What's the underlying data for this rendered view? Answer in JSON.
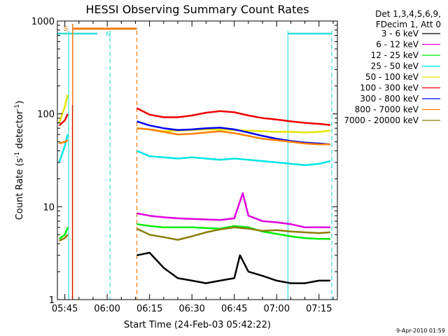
{
  "chart_data": {
    "type": "line",
    "title": "HESSI Observing Summary Count Rates",
    "xlabel": "Start Time (24-Feb-03 05:42:22)",
    "ylabel": "Count Rate (s⁻¹ detector⁻¹)",
    "ylabel_main": "Count Rate (s",
    "ylabel_sup1": "-1",
    "ylabel_mid": " detector",
    "ylabel_sup2": "-1",
    "ylabel_end": ")",
    "y_scale": "log",
    "ylim": [
      1,
      1000
    ],
    "xlim": [
      "05:42:22",
      "07:21:30"
    ],
    "x_ticks": [
      "05:45",
      "06:00",
      "06:15",
      "06:30",
      "06:45",
      "07:00",
      "07:15"
    ],
    "y_ticks": [
      "1",
      "10",
      "100",
      "1000"
    ],
    "grid": false,
    "legend_position": "top-right",
    "legend_header": [
      "Det 1,3,4,5,6,9,",
      "FDecim 1, Att 0"
    ],
    "timestamp": "9-Apr-2010 01:59",
    "flag_labels": {
      "S": "S",
      "N": "N"
    },
    "data_gaps": [
      [
        "05:48:00",
        "06:10:30"
      ]
    ],
    "series": [
      {
        "name": "3 - 6 keV",
        "color": "#000000",
        "x": [
          "06:10:30",
          "06:15",
          "06:20",
          "06:25",
          "06:30",
          "06:35",
          "06:40",
          "06:45",
          "06:47",
          "06:50",
          "06:55",
          "07:00",
          "07:05",
          "07:10",
          "07:15",
          "07:19"
        ],
        "y": [
          3.0,
          3.2,
          2.2,
          1.7,
          1.6,
          1.5,
          1.6,
          1.7,
          3.0,
          2.0,
          1.8,
          1.6,
          1.5,
          1.5,
          1.6,
          1.6
        ]
      },
      {
        "name": "6 - 12 keV",
        "color": "#e000e0",
        "x": [
          "06:10:30",
          "06:15",
          "06:20",
          "06:25",
          "06:30",
          "06:35",
          "06:40",
          "06:45",
          "06:48",
          "06:50",
          "06:55",
          "07:00",
          "07:05",
          "07:10",
          "07:15",
          "07:19"
        ],
        "y": [
          8.5,
          8.0,
          7.7,
          7.5,
          7.4,
          7.3,
          7.2,
          7.5,
          14,
          8.0,
          7.0,
          6.8,
          6.5,
          6.0,
          6.0,
          6.0
        ]
      },
      {
        "name": "12 - 25 keV",
        "color": "#00ee00",
        "x": [
          "05:43",
          "05:45",
          "05:46",
          "06:10:30",
          "06:15",
          "06:20",
          "06:25",
          "06:30",
          "06:35",
          "06:40",
          "06:45",
          "06:50",
          "06:55",
          "07:00",
          "07:05",
          "07:10",
          "07:15",
          "07:19"
        ],
        "y": [
          4.5,
          5.0,
          6.0,
          6.5,
          6.2,
          6.0,
          6.0,
          6.0,
          5.9,
          5.8,
          6.2,
          6.0,
          5.4,
          5.1,
          4.8,
          4.6,
          4.5,
          4.5
        ]
      },
      {
        "name": "25 - 50 keV",
        "color": "#00e5e5",
        "x": [
          "05:43",
          "05:45",
          "05:46",
          "06:10:30",
          "06:15",
          "06:20",
          "06:25",
          "06:30",
          "06:35",
          "06:40",
          "06:45",
          "06:50",
          "06:55",
          "07:00",
          "07:05",
          "07:10",
          "07:15",
          "07:19"
        ],
        "y": [
          30,
          45,
          60,
          40,
          35,
          34,
          33,
          34,
          33,
          32,
          33,
          32,
          31,
          30,
          29,
          28,
          29,
          31
        ]
      },
      {
        "name": "50 - 100 keV",
        "color": "#e5e500",
        "x": [
          "05:43",
          "05:45",
          "05:46",
          "06:10:30",
          "06:15",
          "06:20",
          "06:25",
          "06:30",
          "06:35",
          "06:40",
          "06:45",
          "06:50",
          "06:55",
          "07:00",
          "07:05",
          "07:10",
          "07:15",
          "07:19"
        ],
        "y": [
          80,
          120,
          160,
          70,
          68,
          65,
          66,
          67,
          68,
          68,
          67,
          66,
          65,
          64,
          64,
          63,
          64,
          66
        ]
      },
      {
        "name": "100 - 300 keV",
        "color": "#ee0000",
        "x": [
          "05:43",
          "05:45",
          "05:46",
          "06:10:30",
          "06:15",
          "06:20",
          "06:25",
          "06:30",
          "06:35",
          "06:40",
          "06:45",
          "06:50",
          "06:55",
          "07:00",
          "07:05",
          "07:10",
          "07:15",
          "07:19"
        ],
        "y": [
          75,
          85,
          100,
          115,
          98,
          92,
          92,
          96,
          103,
          107,
          104,
          96,
          90,
          87,
          83,
          80,
          78,
          76
        ]
      },
      {
        "name": "300 - 800 keV",
        "color": "#0000ee",
        "x": [
          "06:10:30",
          "06:15",
          "06:20",
          "06:25",
          "06:30",
          "06:35",
          "06:40",
          "06:45",
          "06:50",
          "06:55",
          "07:00",
          "07:05",
          "07:10",
          "07:15",
          "07:19"
        ],
        "y": [
          83,
          75,
          70,
          67,
          68,
          70,
          71,
          68,
          63,
          58,
          54,
          51,
          49,
          48,
          47
        ]
      },
      {
        "name": "800 - 7000 keV",
        "color": "#ff8000",
        "x": [
          "05:43",
          "05:45",
          "05:46",
          "06:10:30",
          "06:15",
          "06:20",
          "06:25",
          "06:30",
          "06:35",
          "06:40",
          "06:45",
          "06:50",
          "06:55",
          "07:00",
          "07:05",
          "07:10",
          "07:15",
          "07:19"
        ],
        "y": [
          48,
          50,
          52,
          70,
          68,
          64,
          60,
          61,
          63,
          65,
          62,
          58,
          54,
          52,
          50,
          48,
          47,
          47
        ]
      },
      {
        "name": "7000 - 20000 keV",
        "color": "#8b7d00",
        "x": [
          "05:43",
          "05:45",
          "05:46",
          "06:10:30",
          "06:15",
          "06:20",
          "06:25",
          "06:30",
          "06:35",
          "06:40",
          "06:45",
          "06:50",
          "06:55",
          "07:00",
          "07:05",
          "07:10",
          "07:15",
          "07:19"
        ],
        "y": [
          4.3,
          4.6,
          5.0,
          5.8,
          5.0,
          4.7,
          4.4,
          4.8,
          5.3,
          5.7,
          6.0,
          5.8,
          5.5,
          5.6,
          5.4,
          5.3,
          5.2,
          5.3
        ]
      }
    ]
  }
}
